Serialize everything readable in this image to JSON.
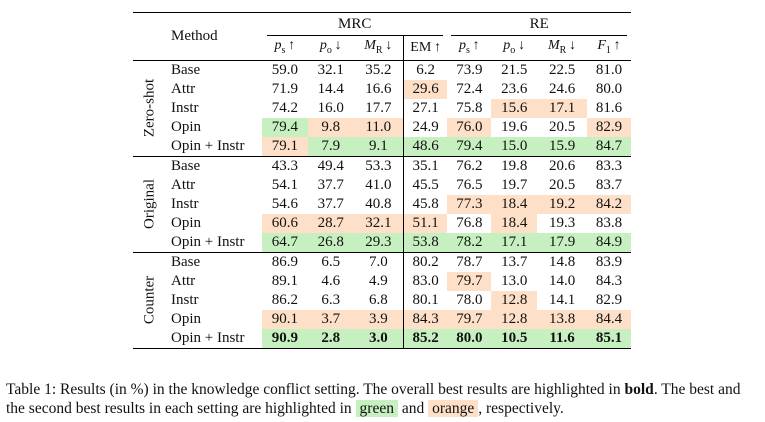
{
  "header": {
    "method": "Method",
    "groups": [
      "MRC",
      "RE"
    ],
    "metrics": [
      {
        "base": "p",
        "sub": "s",
        "arrow": "↑"
      },
      {
        "base": "p",
        "sub": "o",
        "arrow": "↓"
      },
      {
        "base": "M",
        "sub": "R",
        "arrow": "↓"
      },
      {
        "base": "EM",
        "sub": "",
        "arrow": "↑"
      },
      {
        "base": "p",
        "sub": "s",
        "arrow": "↑"
      },
      {
        "base": "p",
        "sub": "o",
        "arrow": "↓"
      },
      {
        "base": "M",
        "sub": "R",
        "arrow": "↓"
      },
      {
        "base": "F",
        "sub": "1",
        "arrow": "↑"
      }
    ]
  },
  "sections": [
    {
      "label": "Zero-shot",
      "rows": [
        {
          "method": "Base",
          "values": [
            "59.0",
            "32.1",
            "35.2",
            "6.2",
            "73.9",
            "21.5",
            "22.5",
            "81.0"
          ],
          "hl": [
            "",
            "",
            "",
            "",
            "",
            "",
            "",
            ""
          ]
        },
        {
          "method": "Attr",
          "values": [
            "71.9",
            "14.4",
            "16.6",
            "29.6",
            "72.4",
            "23.6",
            "24.6",
            "80.0"
          ],
          "hl": [
            "",
            "",
            "",
            "o",
            "",
            "",
            "",
            ""
          ]
        },
        {
          "method": "Instr",
          "values": [
            "74.2",
            "16.0",
            "17.7",
            "27.1",
            "75.8",
            "15.6",
            "17.1",
            "81.6"
          ],
          "hl": [
            "",
            "",
            "",
            "",
            "",
            "o",
            "o",
            ""
          ]
        },
        {
          "method": "Opin",
          "values": [
            "79.4",
            "9.8",
            "11.0",
            "24.9",
            "76.0",
            "19.6",
            "20.5",
            "82.9"
          ],
          "hl": [
            "g",
            "o",
            "o",
            "",
            "o",
            "",
            "",
            "o"
          ]
        },
        {
          "method": "Opin + Instr",
          "values": [
            "79.1",
            "7.9",
            "9.1",
            "48.6",
            "79.4",
            "15.0",
            "15.9",
            "84.7"
          ],
          "hl": [
            "o",
            "g",
            "g",
            "g",
            "g",
            "g",
            "g",
            "g"
          ]
        }
      ]
    },
    {
      "label": "Original",
      "rows": [
        {
          "method": "Base",
          "values": [
            "43.3",
            "49.4",
            "53.3",
            "35.1",
            "76.2",
            "19.8",
            "20.6",
            "83.3"
          ],
          "hl": [
            "",
            "",
            "",
            "",
            "",
            "",
            "",
            ""
          ]
        },
        {
          "method": "Attr",
          "values": [
            "54.1",
            "37.7",
            "41.0",
            "45.5",
            "76.5",
            "19.7",
            "20.5",
            "83.7"
          ],
          "hl": [
            "",
            "",
            "",
            "",
            "",
            "",
            "",
            ""
          ]
        },
        {
          "method": "Instr",
          "values": [
            "54.6",
            "37.7",
            "40.8",
            "45.8",
            "77.3",
            "18.4",
            "19.2",
            "84.2"
          ],
          "hl": [
            "",
            "",
            "",
            "",
            "o",
            "o",
            "o",
            "o"
          ]
        },
        {
          "method": "Opin",
          "values": [
            "60.6",
            "28.7",
            "32.1",
            "51.1",
            "76.8",
            "18.4",
            "19.3",
            "83.8"
          ],
          "hl": [
            "o",
            "o",
            "o",
            "o",
            "",
            "o",
            "",
            ""
          ]
        },
        {
          "method": "Opin + Instr",
          "values": [
            "64.7",
            "26.8",
            "29.3",
            "53.8",
            "78.2",
            "17.1",
            "17.9",
            "84.9"
          ],
          "hl": [
            "g",
            "g",
            "g",
            "g",
            "g",
            "g",
            "g",
            "g"
          ]
        }
      ]
    },
    {
      "label": "Counter",
      "rows": [
        {
          "method": "Base",
          "values": [
            "86.9",
            "6.5",
            "7.0",
            "80.2",
            "78.7",
            "13.7",
            "14.8",
            "83.9"
          ],
          "hl": [
            "",
            "",
            "",
            "",
            "",
            "",
            "",
            ""
          ]
        },
        {
          "method": "Attr",
          "values": [
            "89.1",
            "4.6",
            "4.9",
            "83.0",
            "79.7",
            "13.0",
            "14.0",
            "84.3"
          ],
          "hl": [
            "",
            "",
            "",
            "",
            "o",
            "",
            "",
            ""
          ]
        },
        {
          "method": "Instr",
          "values": [
            "86.2",
            "6.3",
            "6.8",
            "80.1",
            "78.0",
            "12.8",
            "14.1",
            "82.9"
          ],
          "hl": [
            "",
            "",
            "",
            "",
            "",
            "o",
            "",
            ""
          ]
        },
        {
          "method": "Opin",
          "values": [
            "90.1",
            "3.7",
            "3.9",
            "84.3",
            "79.7",
            "12.8",
            "13.8",
            "84.4"
          ],
          "hl": [
            "o",
            "o",
            "o",
            "o",
            "o",
            "o",
            "o",
            "o"
          ]
        },
        {
          "method": "Opin + Instr",
          "values": [
            "90.9",
            "2.8",
            "3.0",
            "85.2",
            "80.0",
            "10.5",
            "11.6",
            "85.1"
          ],
          "hl": [
            "gb",
            "gb",
            "gb",
            "gb",
            "gb",
            "gb",
            "gb",
            "gb"
          ]
        }
      ]
    }
  ],
  "caption": {
    "part1": "Table 1: Results (in %) in the knowledge conflict setting. The overall best results are highlighted in ",
    "bold_word": "bold",
    "part2": ". The best and the second best results in each setting are highlighted in ",
    "green_word": "green",
    "part3": " and ",
    "orange_word": "orange",
    "part4": ", respectively."
  },
  "colors": {
    "green": "#c7f0c0",
    "orange": "#fde0c7"
  }
}
